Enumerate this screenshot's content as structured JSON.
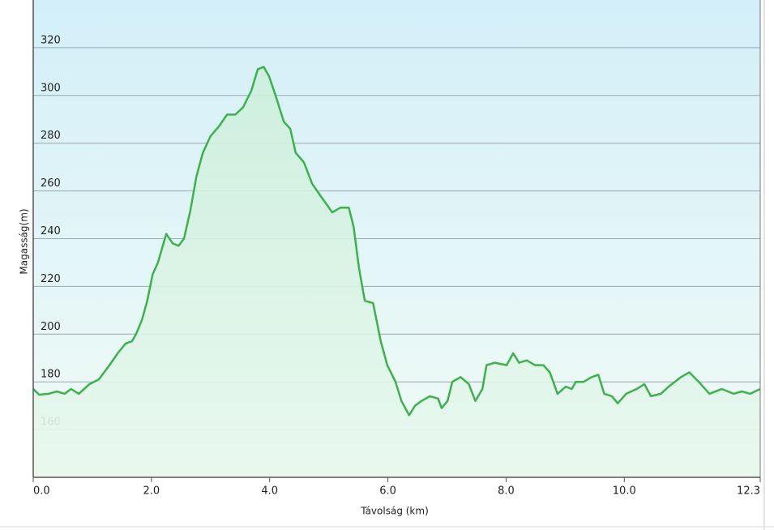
{
  "chart_data": {
    "type": "area",
    "x_label": "Távolság  (km)",
    "y_label": "Magasság(m)",
    "color": "#3bb34a",
    "grid": true,
    "xlim": [
      0,
      12.3
    ],
    "ylim": [
      140,
      340
    ],
    "xticks": [
      {
        "value": 0,
        "label": "0.0"
      },
      {
        "value": 2,
        "label": "2.0"
      },
      {
        "value": 4,
        "label": "4.0"
      },
      {
        "value": 6,
        "label": "6.0"
      },
      {
        "value": 8,
        "label": "8.0"
      },
      {
        "value": 10,
        "label": "10.0"
      },
      12.3
    ],
    "yticks": [
      160,
      180,
      200,
      220,
      240,
      260,
      280,
      300,
      320
    ],
    "x": [
      0,
      0.1,
      0.26,
      0.4,
      0.53,
      0.64,
      0.77,
      0.95,
      1.11,
      1.29,
      1.43,
      1.56,
      1.67,
      1.74,
      1.84,
      1.93,
      2.02,
      2.11,
      2.25,
      2.36,
      2.46,
      2.55,
      2.66,
      2.76,
      2.87,
      3.0,
      3.14,
      3.28,
      3.42,
      3.55,
      3.69,
      3.8,
      3.9,
      3.99,
      4.1,
      4.24,
      4.35,
      4.44,
      4.58,
      4.72,
      4.86,
      5.06,
      5.2,
      5.34,
      5.42,
      5.51,
      5.61,
      5.75,
      5.88,
      5.99,
      6.13,
      6.23,
      6.36,
      6.46,
      6.57,
      6.71,
      6.85,
      6.91,
      7.01,
      7.09,
      7.23,
      7.37,
      7.48,
      7.6,
      7.67,
      7.81,
      8.01,
      8.12,
      8.22,
      8.35,
      8.49,
      8.63,
      8.74,
      8.87,
      9.01,
      9.11,
      9.18,
      9.31,
      9.45,
      9.56,
      9.66,
      9.79,
      9.89,
      10.03,
      10.21,
      10.34,
      10.45,
      10.62,
      10.75,
      10.96,
      11.1,
      11.26,
      11.44,
      11.65,
      11.85,
      11.99,
      12.13,
      12.3
    ],
    "values": [
      177,
      174.6,
      175,
      176,
      175,
      177,
      175,
      179,
      181,
      187,
      192,
      196,
      197,
      200,
      206,
      214,
      225,
      230,
      242,
      238,
      237,
      240,
      252,
      266,
      276,
      283,
      287,
      292,
      292,
      295,
      302,
      311,
      312,
      308,
      300,
      289,
      286,
      276,
      272,
      263,
      258,
      251,
      253,
      253,
      245,
      228,
      214,
      213,
      197,
      187,
      180,
      172,
      166,
      170,
      172,
      174,
      173,
      169,
      172,
      180,
      182,
      179,
      172,
      177,
      187,
      188,
      187,
      192,
      188,
      189,
      187,
      187,
      184,
      175,
      178,
      177,
      180,
      180,
      182,
      183,
      175,
      174,
      171,
      175,
      177,
      179,
      174,
      175,
      178,
      182,
      184,
      180,
      175,
      177,
      175,
      176,
      175,
      177
    ]
  }
}
